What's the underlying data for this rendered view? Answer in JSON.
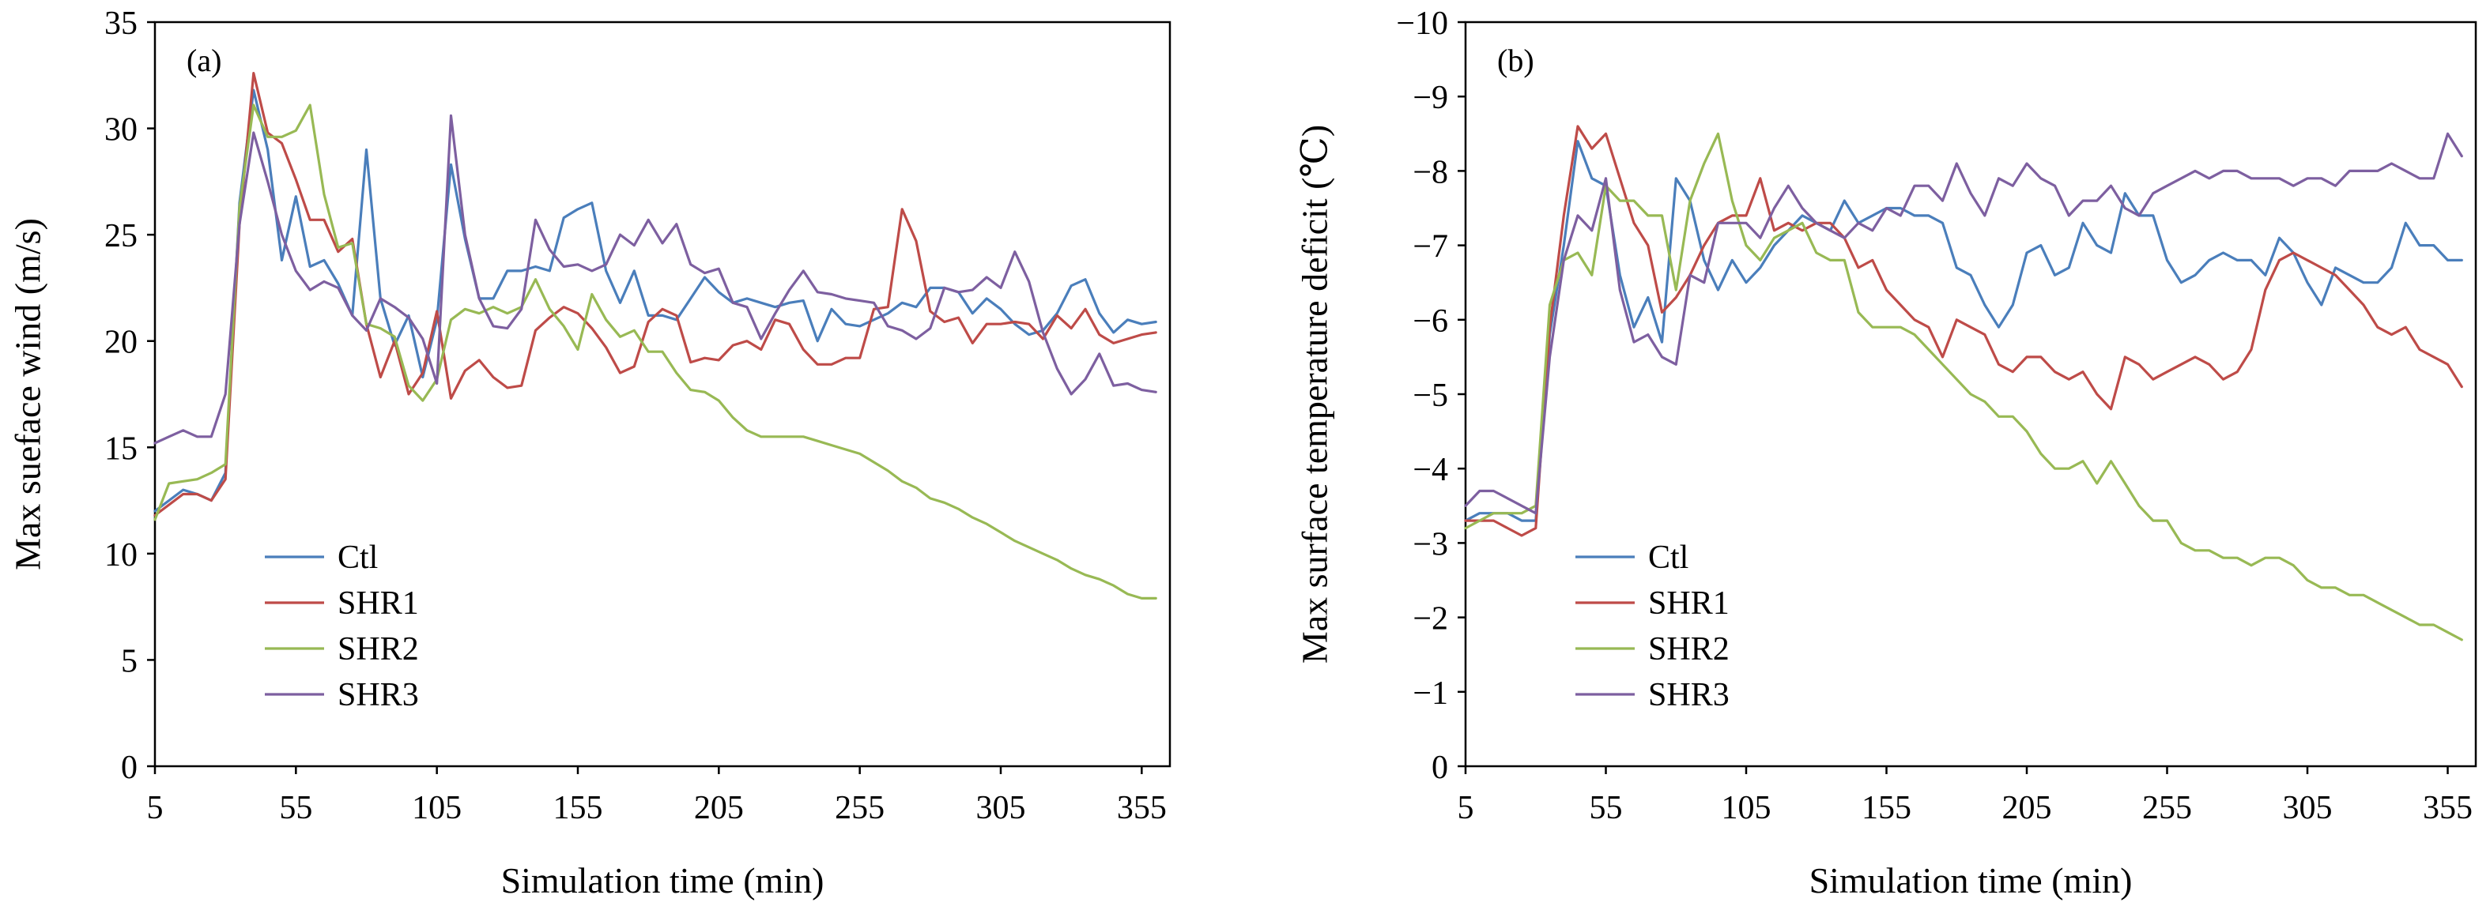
{
  "colors": {
    "Ctl": "#4a7ebb",
    "SHR1": "#be4b48",
    "SHR2": "#98b954",
    "SHR3": "#7d5fa0"
  },
  "chart_data": [
    {
      "type": "line",
      "panel_label": "(a)",
      "title": "",
      "xlabel": "Simulation time (min)",
      "ylabel": "Max sueface wind (m/s)",
      "xlim": [
        5,
        365
      ],
      "ylim": [
        0,
        35
      ],
      "xticks": [
        5,
        55,
        105,
        155,
        205,
        255,
        305,
        355
      ],
      "yticks": [
        0,
        5,
        10,
        15,
        20,
        25,
        30,
        35
      ],
      "ytick_labels": [
        "0",
        "5",
        "10",
        "15",
        "20",
        "25",
        "30",
        "35"
      ],
      "grid": false,
      "legend": "lower-left",
      "x": [
        5,
        10,
        15,
        20,
        25,
        30,
        35,
        40,
        45,
        50,
        55,
        60,
        65,
        70,
        75,
        80,
        85,
        90,
        95,
        100,
        105,
        110,
        115,
        120,
        125,
        130,
        135,
        140,
        145,
        150,
        155,
        160,
        165,
        170,
        175,
        180,
        185,
        190,
        195,
        200,
        205,
        210,
        215,
        220,
        225,
        230,
        235,
        240,
        245,
        250,
        255,
        260,
        265,
        270,
        275,
        280,
        285,
        290,
        295,
        300,
        305,
        310,
        315,
        320,
        325,
        330,
        335,
        340,
        345,
        350,
        355,
        360
      ],
      "series": [
        {
          "name": "Ctl",
          "values": [
            12.0,
            12.5,
            13.0,
            12.8,
            12.5,
            13.8,
            26.5,
            31.8,
            29.0,
            23.8,
            26.8,
            23.5,
            23.8,
            22.7,
            21.2,
            29.0,
            22.0,
            19.8,
            21.2,
            18.3,
            21.0,
            28.3,
            24.8,
            22.0,
            22.0,
            23.3,
            23.3,
            23.5,
            23.3,
            25.8,
            26.2,
            26.5,
            23.3,
            21.8,
            23.3,
            21.2,
            21.2,
            21.0,
            22.0,
            23.0,
            22.3,
            21.8,
            22.0,
            21.8,
            21.6,
            21.8,
            21.9,
            20.0,
            21.5,
            20.8,
            20.7,
            21.0,
            21.3,
            21.8,
            21.6,
            22.5,
            22.5,
            22.3,
            21.3,
            22.0,
            21.5,
            20.8,
            20.3,
            20.5,
            21.3,
            22.6,
            22.9,
            21.3,
            20.4,
            21.0,
            20.8,
            20.9
          ]
        },
        {
          "name": "SHR1",
          "values": [
            11.8,
            12.3,
            12.8,
            12.8,
            12.5,
            13.5,
            25.5,
            32.6,
            29.8,
            29.3,
            27.6,
            25.7,
            25.7,
            24.2,
            24.8,
            20.8,
            18.3,
            20.0,
            17.5,
            18.5,
            21.4,
            17.3,
            18.6,
            19.1,
            18.3,
            17.8,
            17.9,
            20.5,
            21.1,
            21.6,
            21.3,
            20.6,
            19.7,
            18.5,
            18.8,
            20.9,
            21.5,
            21.2,
            19.0,
            19.2,
            19.1,
            19.8,
            20.0,
            19.6,
            21.0,
            20.8,
            19.6,
            18.9,
            18.9,
            19.2,
            19.2,
            21.5,
            21.6,
            26.2,
            24.7,
            21.4,
            20.9,
            21.1,
            19.9,
            20.8,
            20.8,
            20.9,
            20.8,
            20.1,
            21.2,
            20.6,
            21.5,
            20.3,
            19.9,
            20.1,
            20.3,
            20.4
          ]
        },
        {
          "name": "SHR2",
          "values": [
            11.6,
            13.3,
            13.4,
            13.5,
            13.8,
            14.2,
            26.3,
            31.1,
            29.6,
            29.6,
            29.9,
            31.1,
            26.9,
            24.4,
            24.6,
            20.8,
            20.6,
            20.2,
            17.9,
            17.2,
            18.2,
            21.0,
            21.5,
            21.3,
            21.6,
            21.3,
            21.6,
            22.9,
            21.5,
            20.7,
            19.6,
            22.2,
            21.0,
            20.2,
            20.5,
            19.5,
            19.5,
            18.5,
            17.7,
            17.6,
            17.2,
            16.4,
            15.8,
            15.5,
            15.5,
            15.5,
            15.5,
            15.3,
            15.1,
            14.9,
            14.7,
            14.3,
            13.9,
            13.4,
            13.1,
            12.6,
            12.4,
            12.1,
            11.7,
            11.4,
            11.0,
            10.6,
            10.3,
            10.0,
            9.7,
            9.3,
            9.0,
            8.8,
            8.5,
            8.1,
            7.9,
            7.9
          ]
        },
        {
          "name": "SHR3",
          "values": [
            15.2,
            15.5,
            15.8,
            15.5,
            15.5,
            17.5,
            25.5,
            29.8,
            27.5,
            25.0,
            23.3,
            22.4,
            22.8,
            22.5,
            21.2,
            20.5,
            22.0,
            21.6,
            21.1,
            20.1,
            18.0,
            30.6,
            25.0,
            22.0,
            20.7,
            20.6,
            21.5,
            25.7,
            24.3,
            23.5,
            23.6,
            23.3,
            23.6,
            25.0,
            24.5,
            25.7,
            24.6,
            25.5,
            23.6,
            23.2,
            23.4,
            21.8,
            21.6,
            20.1,
            21.3,
            22.4,
            23.3,
            22.3,
            22.2,
            22.0,
            21.9,
            21.8,
            20.7,
            20.5,
            20.1,
            20.6,
            22.5,
            22.3,
            22.4,
            23.0,
            22.5,
            24.2,
            22.8,
            20.4,
            18.7,
            17.5,
            18.2,
            19.4,
            17.9,
            18.0,
            17.7,
            17.6
          ]
        }
      ]
    },
    {
      "type": "line",
      "panel_label": "(b)",
      "title": "",
      "xlabel": "Simulation time (min)",
      "ylabel": "Max surface temperature deficit (℃)",
      "xlim": [
        5,
        365
      ],
      "ylim": [
        0,
        -10
      ],
      "y_inverted": true,
      "xticks": [
        5,
        55,
        105,
        155,
        205,
        255,
        305,
        355
      ],
      "yticks": [
        0,
        -1,
        -2,
        -3,
        -4,
        -5,
        -6,
        -7,
        -8,
        -9,
        -10
      ],
      "ytick_labels": [
        "0",
        "−1",
        "−2",
        "−3",
        "−4",
        "−5",
        "−6",
        "−7",
        "−8",
        "−9",
        "−10"
      ],
      "grid": false,
      "legend": "lower-left",
      "x": [
        5,
        10,
        15,
        20,
        25,
        30,
        35,
        40,
        45,
        50,
        55,
        60,
        65,
        70,
        75,
        80,
        85,
        90,
        95,
        100,
        105,
        110,
        115,
        120,
        125,
        130,
        135,
        140,
        145,
        150,
        155,
        160,
        165,
        170,
        175,
        180,
        185,
        190,
        195,
        200,
        205,
        210,
        215,
        220,
        225,
        230,
        235,
        240,
        245,
        250,
        255,
        260,
        265,
        270,
        275,
        280,
        285,
        290,
        295,
        300,
        305,
        310,
        315,
        320,
        325,
        330,
        335,
        340,
        345,
        350,
        355,
        360
      ],
      "series": [
        {
          "name": "Ctl",
          "values": [
            -3.3,
            -3.4,
            -3.4,
            -3.4,
            -3.3,
            -3.3,
            -5.8,
            -7.0,
            -8.4,
            -7.9,
            -7.8,
            -6.6,
            -5.9,
            -6.3,
            -5.7,
            -7.9,
            -7.6,
            -6.8,
            -6.4,
            -6.8,
            -6.5,
            -6.7,
            -7.0,
            -7.2,
            -7.4,
            -7.3,
            -7.2,
            -7.6,
            -7.3,
            -7.4,
            -7.5,
            -7.5,
            -7.4,
            -7.4,
            -7.3,
            -6.7,
            -6.6,
            -6.2,
            -5.9,
            -6.2,
            -6.9,
            -7.0,
            -6.6,
            -6.7,
            -7.3,
            -7.0,
            -6.9,
            -7.7,
            -7.4,
            -7.4,
            -6.8,
            -6.5,
            -6.6,
            -6.8,
            -6.9,
            -6.8,
            -6.8,
            -6.6,
            -7.1,
            -6.9,
            -6.5,
            -6.2,
            -6.7,
            -6.6,
            -6.5,
            -6.5,
            -6.7,
            -7.3,
            -7.0,
            -7.0,
            -6.8,
            -6.8
          ]
        },
        {
          "name": "SHR1",
          "values": [
            -3.3,
            -3.3,
            -3.3,
            -3.2,
            -3.1,
            -3.2,
            -5.9,
            -7.4,
            -8.6,
            -8.3,
            -8.5,
            -7.9,
            -7.3,
            -7.0,
            -6.1,
            -6.3,
            -6.6,
            -7.0,
            -7.3,
            -7.4,
            -7.4,
            -7.9,
            -7.2,
            -7.3,
            -7.2,
            -7.3,
            -7.3,
            -7.1,
            -6.7,
            -6.8,
            -6.4,
            -6.2,
            -6.0,
            -5.9,
            -5.5,
            -6.0,
            -5.9,
            -5.8,
            -5.4,
            -5.3,
            -5.5,
            -5.5,
            -5.3,
            -5.2,
            -5.3,
            -5.0,
            -4.8,
            -5.5,
            -5.4,
            -5.2,
            -5.3,
            -5.4,
            -5.5,
            -5.4,
            -5.2,
            -5.3,
            -5.6,
            -6.4,
            -6.8,
            -6.9,
            -6.8,
            -6.7,
            -6.6,
            -6.4,
            -6.2,
            -5.9,
            -5.8,
            -5.9,
            -5.6,
            -5.5,
            -5.4,
            -5.1
          ]
        },
        {
          "name": "SHR2",
          "values": [
            -3.2,
            -3.3,
            -3.4,
            -3.4,
            -3.4,
            -3.5,
            -6.2,
            -6.8,
            -6.9,
            -6.6,
            -7.8,
            -7.6,
            -7.6,
            -7.4,
            -7.4,
            -6.4,
            -7.6,
            -8.1,
            -8.5,
            -7.6,
            -7.0,
            -6.8,
            -7.1,
            -7.2,
            -7.3,
            -6.9,
            -6.8,
            -6.8,
            -6.1,
            -5.9,
            -5.9,
            -5.9,
            -5.8,
            -5.6,
            -5.4,
            -5.2,
            -5.0,
            -4.9,
            -4.7,
            -4.7,
            -4.5,
            -4.2,
            -4.0,
            -4.0,
            -4.1,
            -3.8,
            -4.1,
            -3.8,
            -3.5,
            -3.3,
            -3.3,
            -3.0,
            -2.9,
            -2.9,
            -2.8,
            -2.8,
            -2.7,
            -2.8,
            -2.8,
            -2.7,
            -2.5,
            -2.4,
            -2.4,
            -2.3,
            -2.3,
            -2.2,
            -2.1,
            -2.0,
            -1.9,
            -1.9,
            -1.8,
            -1.7
          ]
        },
        {
          "name": "SHR3",
          "values": [
            -3.5,
            -3.7,
            -3.7,
            -3.6,
            -3.5,
            -3.4,
            -5.5,
            -6.8,
            -7.4,
            -7.2,
            -7.9,
            -6.4,
            -5.7,
            -5.8,
            -5.5,
            -5.4,
            -6.6,
            -6.5,
            -7.3,
            -7.3,
            -7.3,
            -7.1,
            -7.5,
            -7.8,
            -7.5,
            -7.3,
            -7.2,
            -7.1,
            -7.3,
            -7.2,
            -7.5,
            -7.4,
            -7.8,
            -7.8,
            -7.6,
            -8.1,
            -7.7,
            -7.4,
            -7.9,
            -7.8,
            -8.1,
            -7.9,
            -7.8,
            -7.4,
            -7.6,
            -7.6,
            -7.8,
            -7.5,
            -7.4,
            -7.7,
            -7.8,
            -7.9,
            -8.0,
            -7.9,
            -8.0,
            -8.0,
            -7.9,
            -7.9,
            -7.9,
            -7.8,
            -7.9,
            -7.9,
            -7.8,
            -8.0,
            -8.0,
            -8.0,
            -8.1,
            -8.0,
            -7.9,
            -7.9,
            -8.5,
            -8.2
          ]
        }
      ]
    }
  ]
}
